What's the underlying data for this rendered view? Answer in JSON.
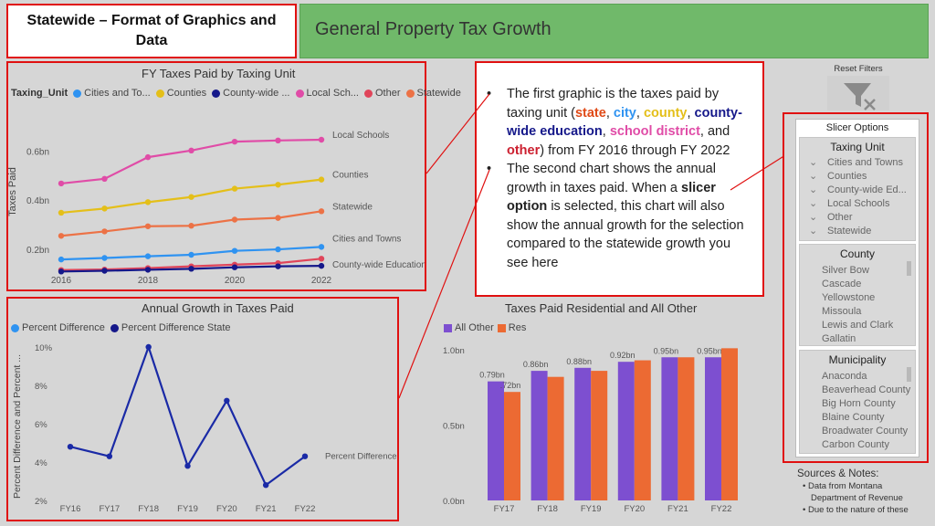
{
  "header": {
    "title": "Statewide – Format of Graphics and Data",
    "banner": "General Property Tax Growth"
  },
  "colors": {
    "cities": "#2f93f1",
    "counties": "#e4bf19",
    "county_wide": "#15188a",
    "local_schools": "#e04ca7",
    "other": "#e0455a",
    "statewide": "#ec7246",
    "all_other": "#7d4fd0",
    "res": "#ec6a33"
  },
  "legend1": {
    "label": "Taxing_Unit",
    "items": [
      "Cities and To...",
      "Counties",
      "County-wide ...",
      "Local Sch...",
      "Other",
      "Statewide"
    ]
  },
  "legend2": {
    "items": [
      "Percent Difference",
      "Percent Difference State"
    ]
  },
  "legend3": {
    "items": [
      "All Other",
      "Res"
    ]
  },
  "chart_data": [
    {
      "type": "line",
      "title": "FY Taxes Paid by Taxing Unit",
      "ylabel": "Taxes Paid",
      "x": [
        2016,
        2017,
        2018,
        2019,
        2020,
        2021,
        2022
      ],
      "x_ticks": [
        "2016",
        "2018",
        "2020",
        "2022"
      ],
      "y_ticks": [
        "0.2bn",
        "0.4bn",
        "0.6bn"
      ],
      "ylim": [
        0.1,
        0.75
      ],
      "series": [
        {
          "name": "Local Schools",
          "key": "local_schools",
          "end_label": "Local Schools",
          "values": [
            0.468,
            0.487,
            0.575,
            0.602,
            0.638,
            0.643,
            0.646
          ]
        },
        {
          "name": "Counties",
          "key": "counties",
          "end_label": "Counties",
          "values": [
            0.349,
            0.366,
            0.392,
            0.413,
            0.447,
            0.463,
            0.484
          ]
        },
        {
          "name": "Statewide",
          "key": "statewide",
          "end_label": "Statewide",
          "values": [
            0.255,
            0.273,
            0.294,
            0.296,
            0.321,
            0.328,
            0.355
          ]
        },
        {
          "name": "Cities and Towns",
          "key": "cities",
          "end_label": "Cities and Towns",
          "values": [
            0.159,
            0.165,
            0.172,
            0.178,
            0.194,
            0.2,
            0.21
          ]
        },
        {
          "name": "Other",
          "key": "other",
          "end_label": "",
          "values": [
            0.116,
            0.118,
            0.124,
            0.131,
            0.138,
            0.144,
            0.162
          ]
        },
        {
          "name": "County-wide Education",
          "key": "county_wide",
          "end_label": "County-wide Education",
          "values": [
            0.11,
            0.113,
            0.117,
            0.121,
            0.127,
            0.131,
            0.133
          ]
        }
      ]
    },
    {
      "type": "line",
      "title": "Annual Growth in Taxes Paid",
      "ylabel": "Percent Difference and Percent ...",
      "x": [
        "FY16",
        "FY17",
        "FY18",
        "FY19",
        "FY20",
        "FY21",
        "FY22"
      ],
      "y_ticks": [
        "2%",
        "4%",
        "6%",
        "8%",
        "10%"
      ],
      "ylim": [
        2,
        10
      ],
      "series": [
        {
          "name": "Percent Difference",
          "end_label": "Percent Difference",
          "values": [
            4.8,
            4.3,
            10.0,
            3.8,
            7.2,
            2.8,
            4.3
          ]
        }
      ]
    },
    {
      "type": "bar",
      "title": "Taxes Paid Residential and All Other",
      "categories": [
        "FY17",
        "FY18",
        "FY19",
        "FY20",
        "FY21",
        "FY22"
      ],
      "y_ticks": [
        "0.0bn",
        "0.5bn",
        "1.0bn"
      ],
      "ylim": [
        0,
        1.0
      ],
      "series": [
        {
          "name": "All Other",
          "values": [
            0.79,
            0.86,
            0.88,
            0.92,
            0.95,
            0.95
          ],
          "labels": [
            "0.79bn",
            "0.86bn",
            "0.88bn",
            "0.92bn",
            "0.95bn",
            "0.95bn"
          ]
        },
        {
          "name": "Res",
          "values": [
            0.72,
            0.82,
            0.86,
            0.93,
            0.95,
            1.01
          ],
          "labels": [
            ".72bn",
            "",
            "",
            "",
            "",
            ""
          ]
        }
      ]
    }
  ],
  "info": {
    "b1_pre": "The first graphic is the taxes paid by taxing unit (",
    "state": "state",
    "comma1": ", ",
    "city": "city",
    "comma2": ", ",
    "county": "county",
    "comma3": ", ",
    "cwe": "county-wide education",
    "comma4": ", ",
    "school": "school district",
    "and": ", and ",
    "other": "other",
    "b1_post": ") from FY 2016 through FY 2022",
    "b2_pre": "The second chart shows the annual growth in taxes paid. When a ",
    "slicer": "slicer option",
    "b2_post": " is selected, this chart will also show the annual growth for the selection compared to the statewide growth you see here"
  },
  "reset": {
    "label": "Reset Filters"
  },
  "slicer": {
    "title": "Slicer Options",
    "taxing_unit": {
      "title": "Taxing Unit",
      "items": [
        "Cities and Towns",
        "Counties",
        "County-wide Ed...",
        "Local Schools",
        "Other",
        "Statewide"
      ]
    },
    "county": {
      "title": "County",
      "items": [
        "Silver Bow",
        "Cascade",
        "Yellowstone",
        "Missoula",
        "Lewis and Clark",
        "Gallatin"
      ]
    },
    "municipality": {
      "title": "Municipality",
      "items": [
        "Anaconda",
        "Beaverhead County",
        "Big Horn County",
        "Blaine County",
        "Broadwater County",
        "Carbon County"
      ]
    }
  },
  "notes": {
    "title": "Sources & Notes:",
    "items": [
      "Data from Montana",
      "Department of Revenue",
      "Due to the nature of these"
    ]
  }
}
